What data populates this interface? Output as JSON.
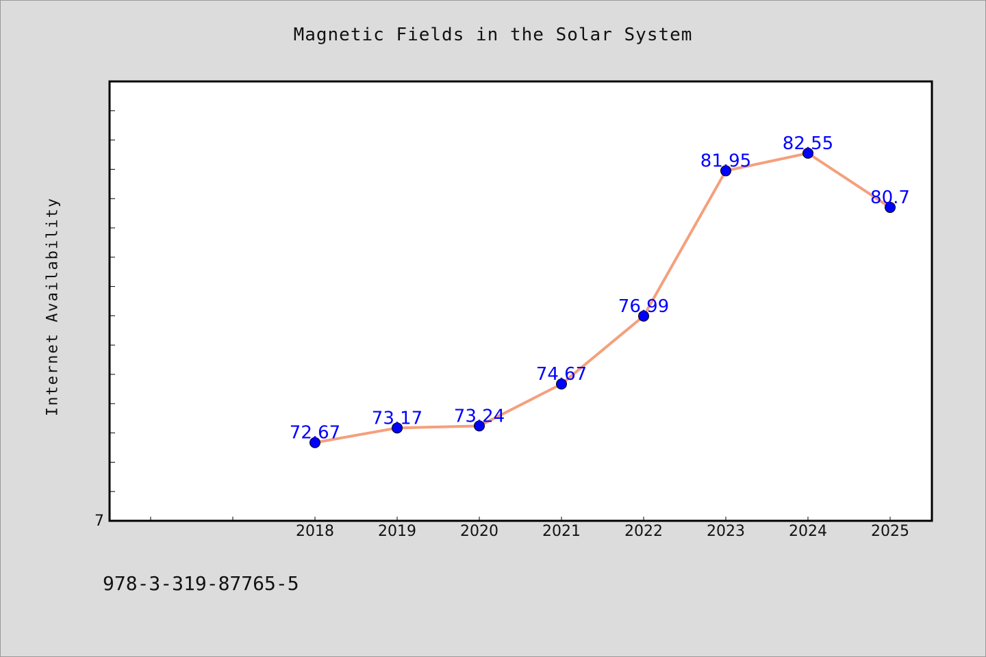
{
  "chart_data": {
    "type": "line",
    "title": "Magnetic Fields in the Solar System",
    "xlabel": "",
    "ylabel": "Internet Availability",
    "categories": [
      "2018",
      "2019",
      "2020",
      "2021",
      "2022",
      "2023",
      "2024",
      "2025"
    ],
    "values": [
      72.67,
      73.17,
      73.24,
      74.67,
      76.99,
      81.95,
      82.55,
      80.7
    ],
    "data_labels": [
      "72.67",
      "73.17",
      "73.24",
      "74.67",
      "76.99",
      "81.95",
      "82.55",
      "80.7"
    ],
    "y_tick_label": "7",
    "ylim": [
      70,
      85
    ],
    "grid": false,
    "colors": {
      "line": "#f4a07c",
      "marker": "#0000ff",
      "label": "#0000ff",
      "background": "#dcdcdc",
      "plot_background": "#ffffff"
    }
  },
  "footer": {
    "code": "978-3-319-87765-5"
  }
}
